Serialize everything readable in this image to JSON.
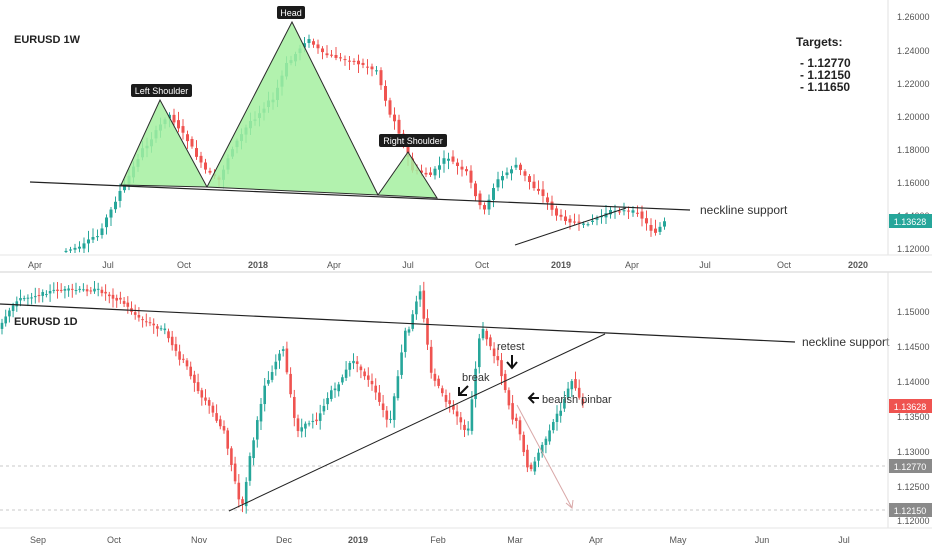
{
  "colors": {
    "up": "#26a69a",
    "down": "#ef5350",
    "pattern_fill": "#a5f0a0",
    "pattern_stroke": "#2b2b2b",
    "price_tag": "#ef5350",
    "dashed_level": "#c9c9c9",
    "projection_arrow": "#d9a8a8"
  },
  "weekly": {
    "symbol_label": "EURUSD 1W",
    "targets_title": "Targets:",
    "targets": [
      "- 1.12770",
      "- 1.12150",
      "- 1.11650"
    ],
    "neckline_label": "neckline support",
    "pattern_labels": {
      "left_shoulder": "Left Shoulder",
      "head": "Head",
      "right_shoulder": "Right Shoulder"
    },
    "price_ticks": [
      "1.26000",
      "1.24000",
      "1.22000",
      "1.20000",
      "1.18000",
      "1.16000",
      "1.14000",
      "1.12000"
    ],
    "last_price": "1.13628",
    "time_ticks": [
      "Apr",
      "Jul",
      "Oct",
      "2018",
      "Apr",
      "Jul",
      "Oct",
      "2019",
      "Apr",
      "Jul",
      "Oct",
      "2020"
    ]
  },
  "daily": {
    "symbol_label": "EURUSD 1D",
    "neckline_label": "neckline support",
    "annotations": {
      "retest": "retest",
      "break": "break",
      "bearish_pinbar": "bearish pinbar"
    },
    "price_ticks": [
      "1.15000",
      "1.14500",
      "1.14000",
      "1.13500",
      "1.13000",
      "1.12500",
      "1.12000"
    ],
    "last_price": "1.13628",
    "target_tags": [
      "1.12770",
      "1.12150"
    ],
    "time_ticks": [
      "Sep",
      "Oct",
      "Nov",
      "Dec",
      "2019",
      "Feb",
      "Mar",
      "Apr",
      "May",
      "Jun",
      "Jul"
    ]
  },
  "chart_data": [
    {
      "type": "candlestick",
      "title": "EURUSD 1W",
      "ylim": [
        1.117,
        1.264
      ],
      "x_range": [
        "2017-03",
        "2020-01"
      ],
      "grid": false,
      "head_and_shoulders": {
        "left_shoulder_peak": 1.209,
        "head_peak": 1.2555,
        "right_shoulder_peak": 1.178,
        "neckline_level": [
          1.16,
          1.145
        ],
        "targets": [
          1.1277,
          1.1215,
          1.1165
        ]
      },
      "last_price": 1.13628
    },
    {
      "type": "candlestick",
      "title": "EURUSD 1D",
      "ylim": [
        1.1195,
        1.1575
      ],
      "x_range": [
        "2018-09",
        "2019-07"
      ],
      "grid": false,
      "neckline_support": [
        1.151,
        1.1455
      ],
      "ascending_trendline": [
        1.1215,
        1.1468
      ],
      "levels": [
        1.1277,
        1.1215
      ],
      "last_price": 1.13628
    }
  ]
}
